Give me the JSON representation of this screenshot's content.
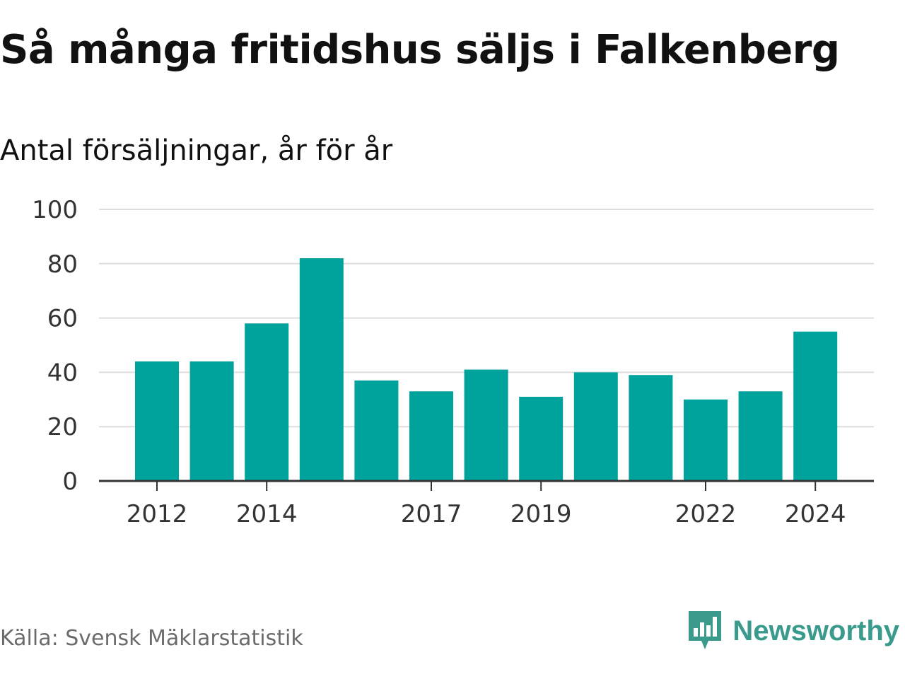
{
  "title": "Så många fritidshus säljs i Falkenberg",
  "subtitle": "Antal försäljningar, år för år",
  "source": "Källa: Svensk Mäklarstatistik",
  "brand": {
    "name": "Newsworthy",
    "icon": "newsworthy-logo-icon",
    "color": "#3a9b8d"
  },
  "chart_data": {
    "type": "bar",
    "categories": [
      "2012",
      "2013",
      "2014",
      "2015",
      "2016",
      "2017",
      "2018",
      "2019",
      "2020",
      "2021",
      "2022",
      "2023",
      "2024"
    ],
    "values": [
      44,
      44,
      58,
      82,
      37,
      33,
      41,
      31,
      40,
      39,
      30,
      33,
      55
    ],
    "x_tick_labels": [
      "2012",
      "2014",
      "2017",
      "2019",
      "2022",
      "2024"
    ],
    "y_ticks": [
      0,
      20,
      40,
      60,
      80,
      100
    ],
    "ylim": [
      0,
      100
    ],
    "grid": true,
    "bar_color": "#00a39b",
    "gridline_color": "#dddddd",
    "axis_color": "#333333"
  }
}
